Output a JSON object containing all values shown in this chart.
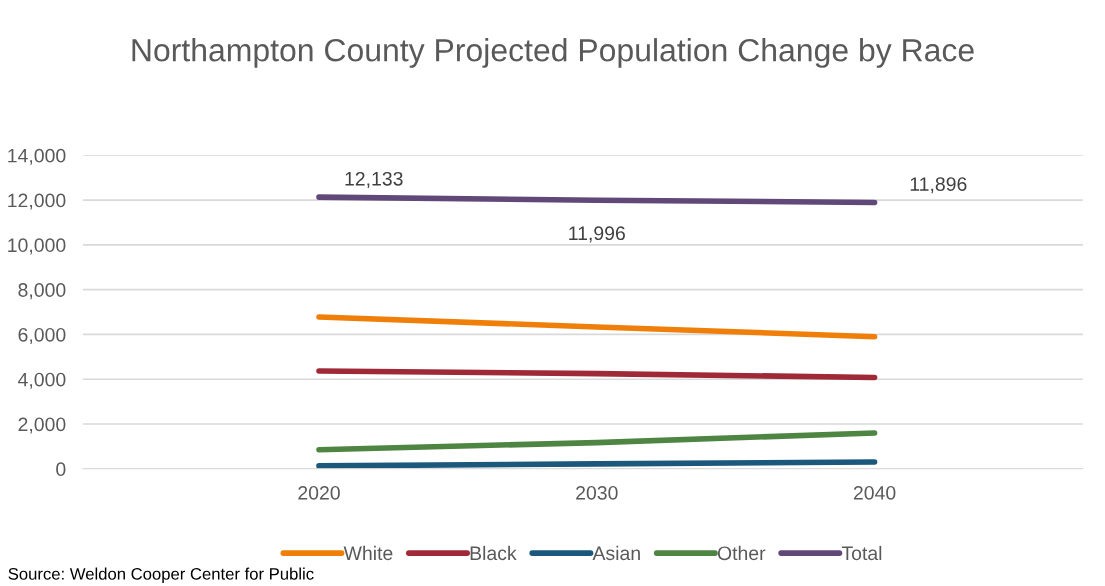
{
  "chart_data": {
    "type": "line",
    "title": "Northampton County Projected Population Change by Race",
    "categories": [
      "2020",
      "2030",
      "2040"
    ],
    "series": [
      {
        "name": "White",
        "color": "#f07f09",
        "values": [
          6780,
          6330,
          5900
        ]
      },
      {
        "name": "Black",
        "color": "#9f2936",
        "values": [
          4370,
          4250,
          4080
        ]
      },
      {
        "name": "Asian",
        "color": "#1b587c",
        "values": [
          130,
          220,
          300
        ]
      },
      {
        "name": "Other",
        "color": "#4e8542",
        "values": [
          850,
          1170,
          1600
        ]
      },
      {
        "name": "Total",
        "color": "#604878",
        "values": [
          12133,
          11996,
          11896
        ],
        "value_labels": [
          "12,133",
          "11,996",
          "11,896"
        ]
      }
    ],
    "ylim": [
      0,
      14000
    ],
    "yticks": [
      {
        "value": 0,
        "label": "0"
      },
      {
        "value": 2000,
        "label": "2,000"
      },
      {
        "value": 4000,
        "label": "4,000"
      },
      {
        "value": 6000,
        "label": "6,000"
      },
      {
        "value": 8000,
        "label": "8,000"
      },
      {
        "value": 10000,
        "label": "10,000"
      },
      {
        "value": 12000,
        "label": "12,000"
      },
      {
        "value": 14000,
        "label": "14,000"
      }
    ],
    "grid": "y",
    "legend": "bottom",
    "marker": "none",
    "line_style": "solid",
    "annotations": [
      "Source: Weldon Cooper Center for Public"
    ]
  }
}
